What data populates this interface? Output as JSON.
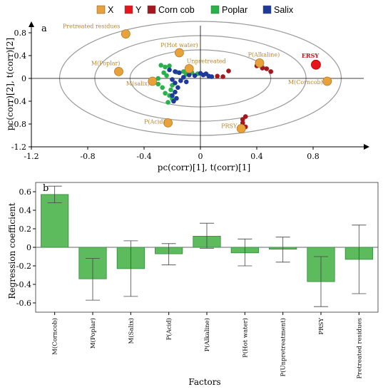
{
  "colors": {
    "x": "#E8A23B",
    "y": "#E8141C",
    "corn_cob": "#A5171C",
    "poplar": "#28B34A",
    "salix": "#1E3A9A",
    "x_label": "#B8862B",
    "y_label": "#C0141C",
    "bar_fill": "#5DBB5E",
    "bar_stroke": "#2E8B3A",
    "ellipse": "#9A9A9A"
  },
  "legend": [
    {
      "label": "X",
      "color_key": "x"
    },
    {
      "label": "Y",
      "color_key": "y"
    },
    {
      "label": "Corn cob",
      "color_key": "corn_cob"
    },
    {
      "label": "Poplar",
      "color_key": "poplar"
    },
    {
      "label": "Salix",
      "color_key": "salix"
    }
  ],
  "chart_data": [
    {
      "type": "scatter",
      "panel": "a",
      "xlabel": "pc(corr)[1], t(corr)[1]",
      "ylabel": "pc(corr)[2], t(corr)[2]",
      "xlim": [
        -1.2,
        1.2
      ],
      "ylim": [
        -1.2,
        1.0
      ],
      "xticks": [
        "-1.2",
        "-0.8",
        "-0.4",
        "0",
        "0.4",
        "0.8"
      ],
      "xtick_values": [
        -1.2,
        -0.8,
        -0.4,
        0,
        0.4,
        0.8
      ],
      "yticks": [
        "-1.2",
        "-0.8",
        "-0.4",
        "0",
        "0.4",
        "0.8"
      ],
      "ytick_values": [
        -1.2,
        -0.8,
        -0.4,
        0,
        0.4,
        0.8
      ],
      "ellipses": [
        {
          "rx": 1.0,
          "ry": 1.0
        },
        {
          "rx": 0.75,
          "ry": 0.75
        },
        {
          "rx": 0.5,
          "ry": 0.5
        }
      ],
      "x_points": [
        {
          "label": "Pretreated residues",
          "x": -0.53,
          "y": 0.78
        },
        {
          "label": "P(Hot water)",
          "x": -0.15,
          "y": 0.45
        },
        {
          "label": "M(Poplar)",
          "x": -0.58,
          "y": 0.12
        },
        {
          "label": "M(salix)",
          "x": -0.34,
          "y": -0.05
        },
        {
          "label": "Unpretreated",
          "x": -0.08,
          "y": 0.17
        },
        {
          "label": "P(Alkaline)",
          "x": 0.42,
          "y": 0.27
        },
        {
          "label": "M(Corncob)",
          "x": 0.9,
          "y": -0.05
        },
        {
          "label": "P(Acid)",
          "x": -0.23,
          "y": -0.78
        },
        {
          "label": "PRSY",
          "x": 0.29,
          "y": -0.88
        }
      ],
      "y_points": [
        {
          "label": "ERSY",
          "x": 0.82,
          "y": 0.24
        }
      ],
      "series": [
        {
          "name": "Corn cob",
          "color_key": "corn_cob",
          "points": [
            [
              0.4,
              0.22
            ],
            [
              0.44,
              0.18
            ],
            [
              0.47,
              0.17
            ],
            [
              0.5,
              0.12
            ],
            [
              0.43,
              0.25
            ],
            [
              0.2,
              0.13
            ],
            [
              0.16,
              0.03
            ],
            [
              0.12,
              0.04
            ],
            [
              0.32,
              -0.67
            ],
            [
              0.3,
              -0.72
            ],
            [
              0.3,
              -0.78
            ],
            [
              0.3,
              -0.83
            ],
            [
              0.32,
              -0.85
            ]
          ]
        },
        {
          "name": "Poplar",
          "color_key": "poplar",
          "points": [
            [
              -0.28,
              0.23
            ],
            [
              -0.25,
              0.2
            ],
            [
              -0.22,
              0.22
            ],
            [
              -0.26,
              0.1
            ],
            [
              -0.24,
              0.05
            ],
            [
              -0.3,
              0.0
            ],
            [
              -0.3,
              -0.1
            ],
            [
              -0.27,
              -0.16
            ],
            [
              -0.25,
              -0.26
            ],
            [
              -0.22,
              -0.3
            ],
            [
              -0.21,
              -0.2
            ],
            [
              -0.2,
              -0.36
            ],
            [
              -0.23,
              -0.42
            ],
            [
              -0.12,
              0.12
            ],
            [
              -0.1,
              0.07
            ],
            [
              -0.06,
              0.1
            ],
            [
              -0.02,
              0.08
            ],
            [
              -0.17,
              0.11
            ],
            [
              -0.2,
              -0.12
            ]
          ]
        },
        {
          "name": "Salix",
          "color_key": "salix",
          "points": [
            [
              -0.22,
              0.15
            ],
            [
              -0.18,
              0.12
            ],
            [
              -0.15,
              0.1
            ],
            [
              -0.2,
              -0.02
            ],
            [
              -0.18,
              -0.08
            ],
            [
              -0.16,
              -0.16
            ],
            [
              -0.18,
              -0.24
            ],
            [
              -0.2,
              -0.3
            ],
            [
              -0.17,
              -0.35
            ],
            [
              -0.19,
              -0.4
            ],
            [
              -0.08,
              0.06
            ],
            [
              -0.04,
              0.05
            ],
            [
              0.0,
              0.09
            ],
            [
              0.02,
              0.06
            ],
            [
              0.04,
              0.08
            ],
            [
              0.06,
              0.04
            ],
            [
              0.08,
              0.03
            ],
            [
              -0.12,
              0.02
            ],
            [
              -0.1,
              -0.06
            ],
            [
              -0.14,
              -0.04
            ]
          ]
        }
      ]
    },
    {
      "type": "bar",
      "panel": "b",
      "xlabel": "Factors",
      "ylabel": "Regression coefficient",
      "ylim": [
        -0.7,
        0.7
      ],
      "yticks": [
        "0.6",
        "0.4",
        "0.2",
        "0",
        "-0.2",
        "-0.4",
        "-0.6"
      ],
      "ytick_values": [
        0.6,
        0.4,
        0.2,
        0,
        -0.2,
        -0.4,
        -0.6
      ],
      "categories": [
        "M(Corncob)",
        "M(Poplar)",
        "M(Salix)",
        "P(Acid)",
        "P(Alkaline)",
        "P(Hot water)",
        "P(Unpretreatment)",
        "PRSY",
        "Pretreated residues"
      ],
      "values": [
        0.57,
        -0.34,
        -0.23,
        -0.07,
        0.12,
        -0.06,
        -0.02,
        -0.37,
        -0.13
      ],
      "error_high": [
        0.66,
        -0.12,
        0.07,
        0.04,
        0.26,
        0.09,
        0.11,
        -0.1,
        0.24
      ],
      "error_low": [
        0.48,
        -0.57,
        -0.53,
        -0.19,
        -0.01,
        -0.2,
        -0.16,
        -0.64,
        -0.5
      ]
    }
  ]
}
